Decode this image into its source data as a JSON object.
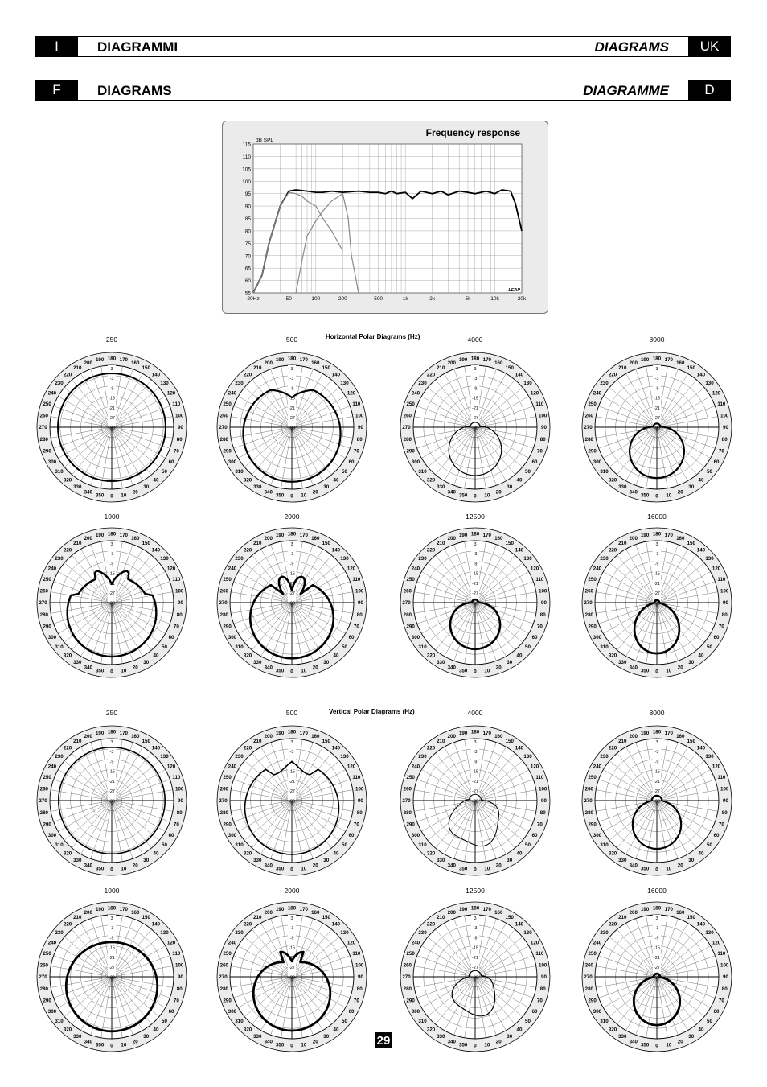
{
  "headers": [
    {
      "left_code": "I",
      "title": "DIAGRAMMI",
      "title_right": "DIAGRAMS",
      "right_code": "UK"
    },
    {
      "left_code": "F",
      "title": "DIAGRAMS",
      "title_right": "DIAGRAMME",
      "right_code": "D"
    }
  ],
  "frequency_response": {
    "title": "Frequency response",
    "ylabel": "dB SPL",
    "logo": "LEAP",
    "y_ticks": [
      "115",
      "110",
      "105",
      "100",
      "95",
      "90",
      "85",
      "80",
      "75",
      "70",
      "65",
      "60",
      "55"
    ],
    "x_ticks": [
      "20Hz",
      "50",
      "100",
      "200",
      "500",
      "1k",
      "2k",
      "5k",
      "10k",
      "20k"
    ]
  },
  "polar": {
    "horizontal_title": "Horizontal Polar Diagrams (Hz)",
    "vertical_title": "Vertical Polar Diagrams (Hz)",
    "angle_labels": [
      "0",
      "10",
      "20",
      "30",
      "40",
      "50",
      "60",
      "70",
      "80",
      "90",
      "100",
      "110",
      "120",
      "130",
      "140",
      "150",
      "160",
      "170",
      "180",
      "190",
      "200",
      "210",
      "220",
      "230",
      "240",
      "250",
      "260",
      "270",
      "280",
      "290",
      "300",
      "310",
      "320",
      "330",
      "340",
      "350"
    ],
    "db_labels": [
      "3",
      "-3",
      "-9",
      "-15",
      "-21",
      "-27",
      "-33"
    ],
    "horizontal_freqs": [
      "250",
      "500",
      "4000",
      "8000",
      "1000",
      "2000",
      "12500",
      "16000"
    ],
    "vertical_freqs": [
      "250",
      "500",
      "4000",
      "8000",
      "1000",
      "2000",
      "12500",
      "16000"
    ]
  },
  "page_number": "29",
  "chart_data": [
    {
      "type": "line",
      "title": "Frequency response",
      "ylabel": "dB SPL",
      "xscale": "log",
      "xlim": [
        20,
        20000
      ],
      "ylim": [
        55,
        115
      ],
      "grid": true,
      "series": [
        {
          "color": "#000000",
          "x": [
            20,
            25,
            30,
            40,
            50,
            60,
            80,
            100,
            120,
            150,
            200,
            300,
            400,
            500,
            600,
            700,
            800,
            1000,
            1200,
            1500,
            2000,
            2500,
            3000,
            4000,
            5000,
            6000,
            7000,
            8000,
            10000,
            12000,
            15000,
            17000,
            20000
          ],
          "y": [
            55,
            62,
            75,
            90,
            96,
            96.5,
            96,
            95.5,
            95.5,
            96,
            95.5,
            96,
            95.5,
            95.5,
            95,
            96,
            95,
            95.5,
            93,
            96,
            95,
            96,
            94.5,
            96,
            95.5,
            95,
            95.5,
            96,
            95,
            96.5,
            96,
            91,
            80
          ]
        },
        {
          "color": "#888888",
          "x": [
            20,
            25,
            30,
            40,
            50,
            60,
            70,
            80,
            100,
            120,
            150,
            200
          ],
          "y": [
            55,
            62,
            75,
            90,
            95.5,
            95,
            94,
            92,
            90,
            85,
            80,
            72
          ]
        },
        {
          "color": "#888888",
          "x": [
            60,
            70,
            80,
            100,
            120,
            150,
            200,
            230,
            250,
            270,
            300
          ],
          "y": [
            55,
            68,
            78,
            84,
            88,
            92,
            95,
            85,
            70,
            64,
            55
          ]
        }
      ]
    }
  ]
}
